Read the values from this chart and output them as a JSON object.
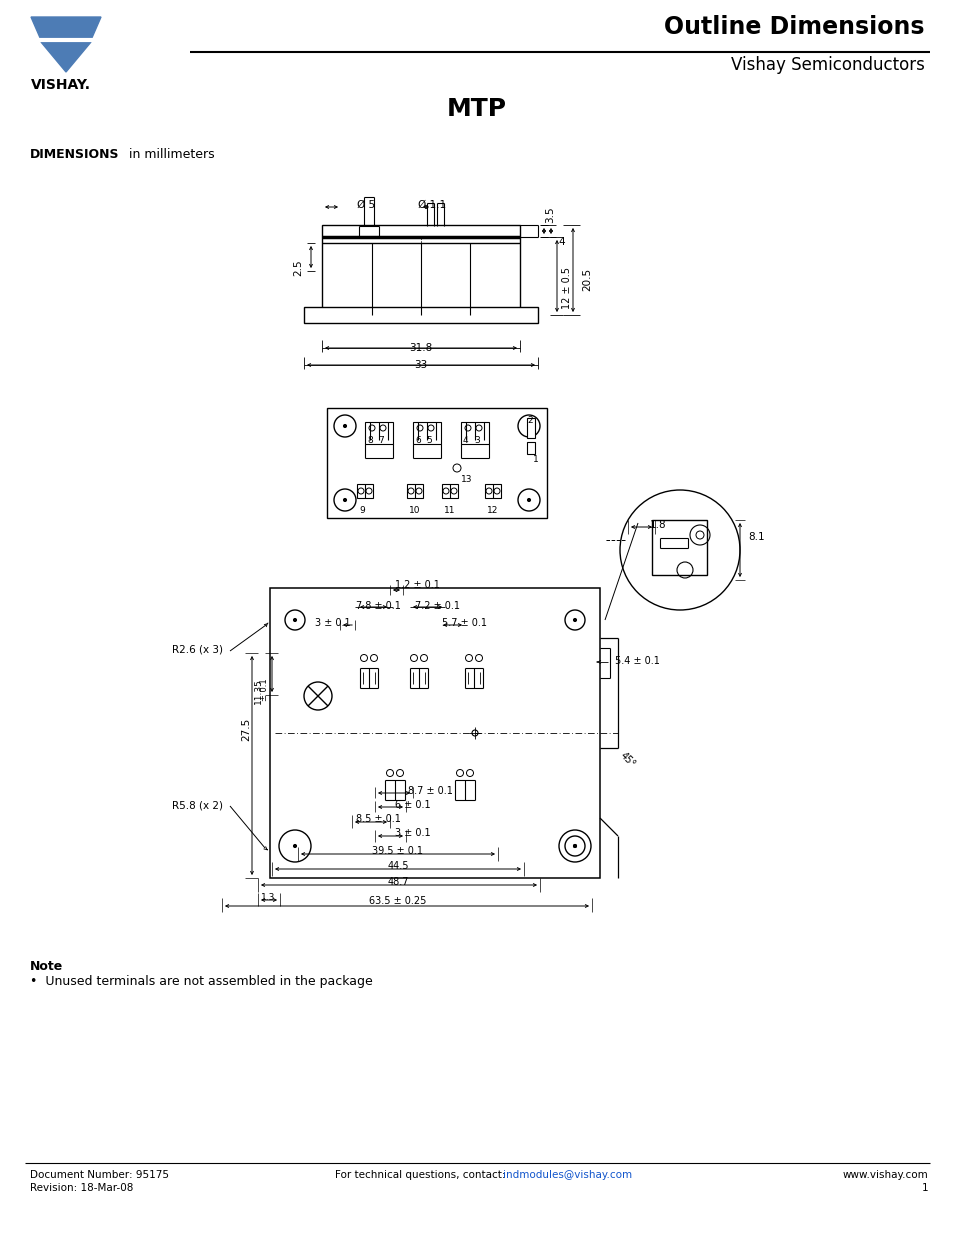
{
  "page_title": "Outline Dimensions",
  "page_subtitle": "Vishay Semiconductors",
  "drawing_title": "MTP",
  "dimensions_label": "DIMENSIONS",
  "dimensions_unit": " in millimeters",
  "footer_left1": "Document Number: 95175",
  "footer_left2": "Revision: 18-Mar-08",
  "footer_center_plain": "For technical questions, contact: ",
  "footer_center_link": "indmodules@vishay.com",
  "footer_right1": "www.vishay.com",
  "footer_right2": "1",
  "note_title": "Note",
  "note_text": "•  Unused terminals are not assembled in the package",
  "vishay_logo_color": "#4d7cb5",
  "black": "#000000",
  "link_color": "#1155CC"
}
